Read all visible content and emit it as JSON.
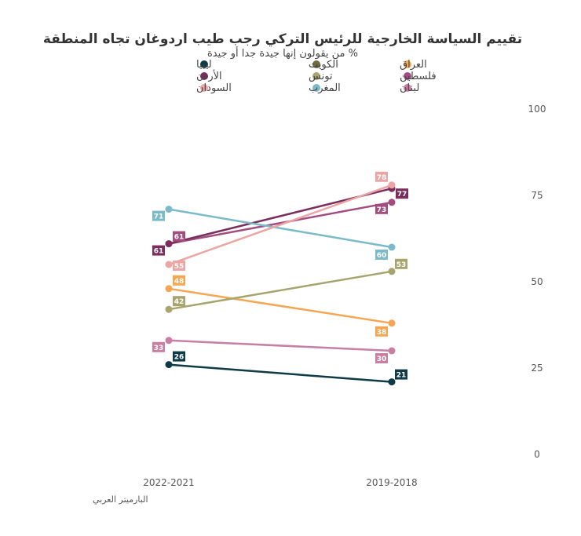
{
  "chart_data": {
    "type": "line",
    "title": "تقييم السياسة الخارجية للرئيس التركي رجب طيب اردوغان تجاه المنطقة",
    "subtitle": "% من يقولون إنها جيدة جدا أو جيدة",
    "source": "البارميتر العربي",
    "categories": [
      "2022-2021",
      "2019-2018"
    ],
    "ylim": [
      0,
      100
    ],
    "yticks": [
      0,
      25,
      50,
      75,
      100
    ],
    "y_axis_side": "right",
    "grid": false,
    "legend_position": "top",
    "series": [
      {
        "name": "العراق",
        "color": "#F5A653",
        "values": [
          48,
          38
        ]
      },
      {
        "name": "الكويت",
        "color": "#6E6B3E",
        "values": [
          null,
          null
        ]
      },
      {
        "name": "ليبيا",
        "color": "#0E3B47",
        "values": [
          26,
          21
        ]
      },
      {
        "name": "فلسطين",
        "color": "#A14D80",
        "values": [
          61,
          73
        ]
      },
      {
        "name": "تونس",
        "color": "#A7A46E",
        "values": [
          42,
          53
        ]
      },
      {
        "name": "الأردن",
        "color": "#7B2E5E",
        "values": [
          61,
          77
        ]
      },
      {
        "name": "لبنان",
        "color": "#C97EA3",
        "values": [
          33,
          30
        ]
      },
      {
        "name": "المغرب",
        "color": "#7BBAC8",
        "values": [
          71,
          60
        ]
      },
      {
        "name": "السودان",
        "color": "#EBA6A3",
        "values": [
          55,
          78
        ]
      }
    ]
  }
}
